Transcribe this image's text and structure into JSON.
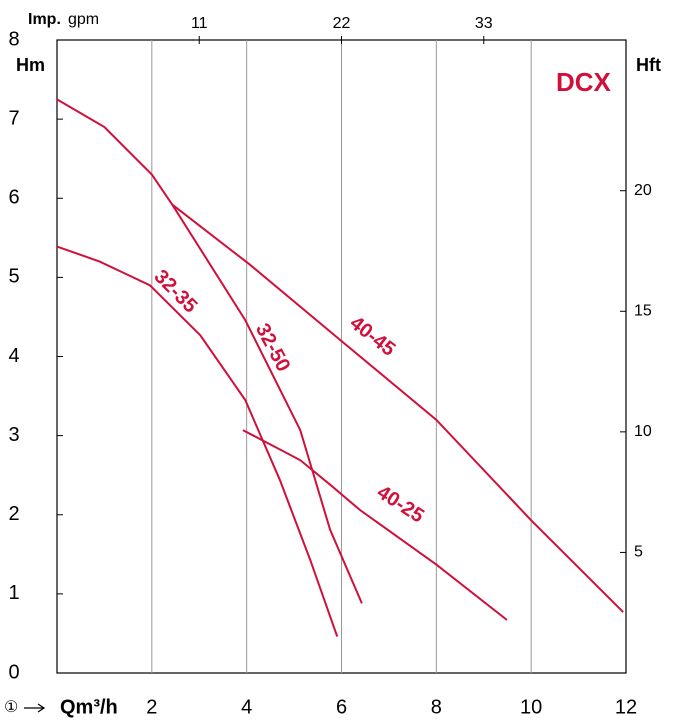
{
  "chart_data": {
    "type": "line",
    "title": "DCX",
    "y_label": "Hm",
    "y2_label": "Hft",
    "x_label": "Qm³/h",
    "x_marker": "①",
    "x2_label_bold": "Imp.",
    "x2_label_unit": "gpm",
    "xlim": [
      0,
      12
    ],
    "xticks": [
      2,
      4,
      6,
      8,
      10,
      12
    ],
    "ylim": [
      0,
      8
    ],
    "yticks": [
      0,
      1,
      2,
      3,
      4,
      5,
      6,
      7,
      8
    ],
    "y2lim": [
      0,
      26.25
    ],
    "y2ticks": [
      5,
      10,
      15,
      20
    ],
    "x2lim": [
      0,
      44
    ],
    "x2ticks": [
      11,
      22,
      33
    ],
    "grid": true,
    "series": [
      {
        "name": "32-35",
        "color": "#d0103a",
        "x": [
          0,
          0.9,
          1.96,
          3.02,
          3.97,
          4.7,
          5.34,
          5.91
        ],
        "values": [
          5.39,
          5.2,
          4.9,
          4.27,
          3.45,
          2.44,
          1.43,
          0.46
        ]
      },
      {
        "name": "32-50",
        "color": "#d0103a",
        "x": [
          0,
          1,
          2,
          2.43,
          3.97,
          5.13,
          5.76,
          6.43
        ],
        "values": [
          7.25,
          6.9,
          6.3,
          5.92,
          4.46,
          3.07,
          1.81,
          0.88
        ]
      },
      {
        "name": "40-45",
        "color": "#d0103a",
        "x": [
          2.43,
          4.07,
          5.97,
          8,
          10,
          11.94
        ],
        "values": [
          5.92,
          5.16,
          4.21,
          3.2,
          1.93,
          0.77
        ]
      },
      {
        "name": "40-25",
        "color": "#d0103a",
        "x": [
          3.92,
          5.13,
          5.76,
          6.39,
          8,
          9.49
        ],
        "values": [
          3.07,
          2.69,
          2.38,
          2.06,
          1.37,
          0.67
        ]
      }
    ]
  }
}
